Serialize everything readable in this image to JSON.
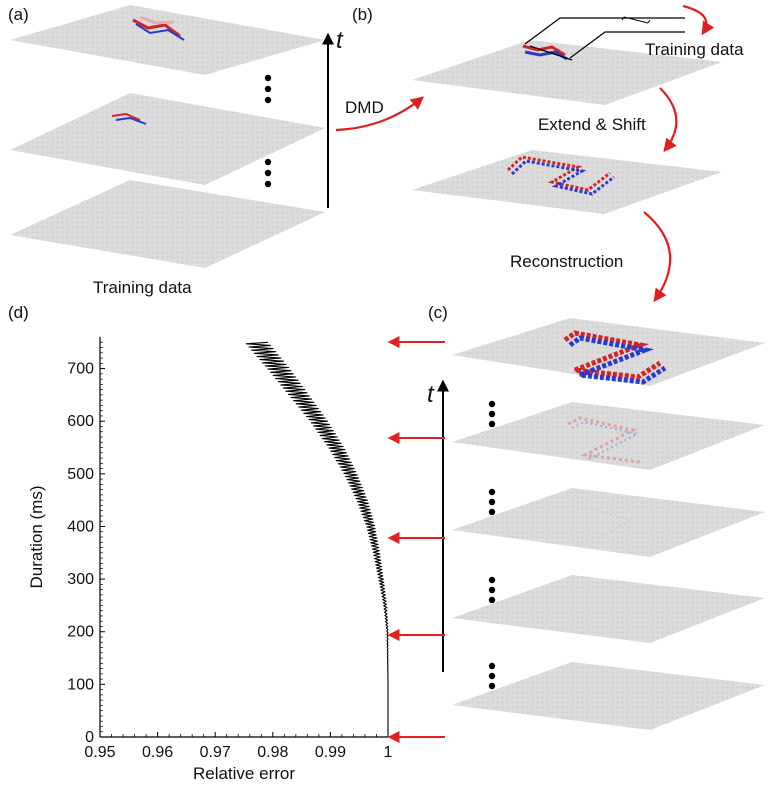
{
  "panels": {
    "a": {
      "label": "(a)",
      "axis_letter": "t",
      "caption": "Training data"
    },
    "b": {
      "label": "(b)",
      "training_label": "Training data",
      "extend_label": "Extend & Shift"
    },
    "c": {
      "label": "(c)",
      "axis_letter": "t"
    },
    "d": {
      "label": "(d)"
    }
  },
  "arrows": {
    "dmd_label": "DMD",
    "reconstruction_label": "Reconstruction"
  },
  "colors": {
    "arrow": "#e02020",
    "plane": "#d9d9d9",
    "mode_red": "#d22525",
    "mode_blue": "#2a3ad0",
    "curve": "#000000"
  },
  "chart_data": {
    "type": "line",
    "xlabel": "Relative error",
    "ylabel": "Duration (ms)",
    "xlim": [
      0.95,
      1.0
    ],
    "ylim": [
      0,
      760
    ],
    "xticks": [
      0.95,
      0.96,
      0.97,
      0.98,
      0.99,
      1
    ],
    "xtick_labels": [
      "0.95",
      "0.96",
      "0.97",
      "0.98",
      "0.99",
      "1"
    ],
    "yticks": [
      0,
      100,
      200,
      300,
      400,
      500,
      600,
      700
    ],
    "ytick_labels": [
      "0",
      "100",
      "200",
      "300",
      "400",
      "500",
      "600",
      "700"
    ],
    "grid": false,
    "series": [
      {
        "x": [
          1.0,
          1.0,
          0.9999,
          0.9995,
          0.9988,
          0.998,
          0.997,
          0.9955,
          0.9935,
          0.991,
          0.988,
          0.9845,
          0.981,
          0.977
        ],
        "y": [
          0,
          100,
          200,
          250,
          300,
          350,
          400,
          450,
          500,
          550,
          600,
          650,
          700,
          752
        ],
        "oscillation_width": [
          0.0,
          0.0,
          0.0002,
          0.0005,
          0.0008,
          0.0011,
          0.0014,
          0.0018,
          0.0022,
          0.0026,
          0.003,
          0.0034,
          0.0038,
          0.004
        ]
      }
    ]
  }
}
